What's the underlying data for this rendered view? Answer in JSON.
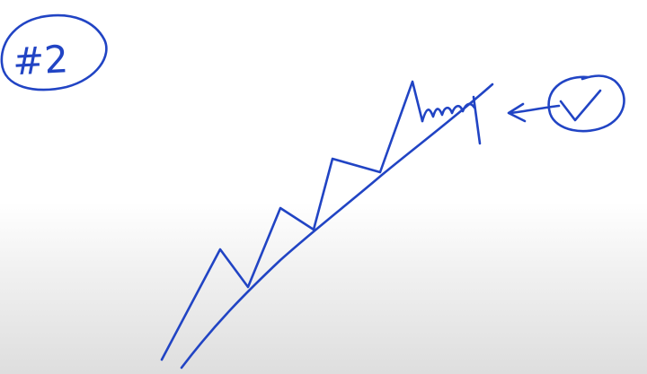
{
  "label": {
    "text": "#2"
  },
  "ink_color": "#2144c4",
  "icons": {
    "arrow": "arrow-left-icon",
    "check": "checkmark-icon"
  }
}
